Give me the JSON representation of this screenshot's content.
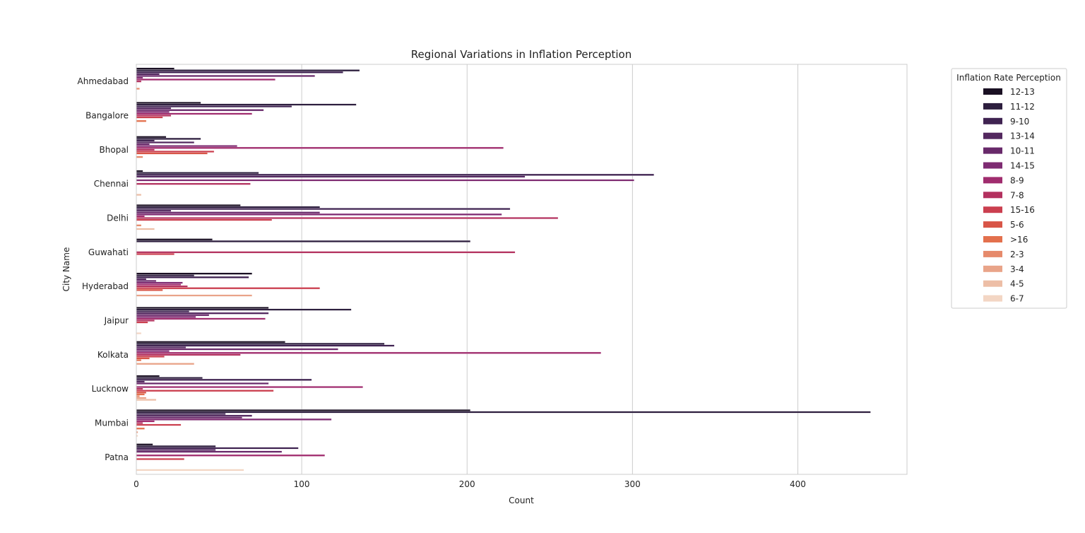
{
  "chart_data": {
    "type": "bar",
    "orientation": "horizontal",
    "title": "Regional Variations in Inflation Perception",
    "xlabel": "Count",
    "ylabel": "City Name",
    "xlim": [
      0,
      466
    ],
    "xticks": [
      0,
      100,
      200,
      300,
      400
    ],
    "grid": true,
    "legend": {
      "title": "Inflation Rate Perception",
      "placement": "outside-right-top"
    },
    "categories": [
      "Ahmedabad",
      "Bangalore",
      "Bhopal",
      "Chennai",
      "Delhi",
      "Guwahati",
      "Hyderabad",
      "Jaipur",
      "Kolkata",
      "Lucknow",
      "Mumbai",
      "Patna"
    ],
    "series": [
      {
        "name": "12-13",
        "color": "#1a1023",
        "values": [
          23,
          39,
          18,
          4,
          63,
          46,
          70,
          80,
          90,
          14,
          202,
          10
        ]
      },
      {
        "name": "11-12",
        "color": "#2d1e3e",
        "values": [
          135,
          133,
          39,
          74,
          111,
          202,
          35,
          130,
          150,
          40,
          444,
          48
        ]
      },
      {
        "name": "9-10",
        "color": "#3f2351",
        "values": [
          125,
          94,
          11,
          313,
          226,
          0,
          68,
          32,
          156,
          106,
          54,
          98
        ]
      },
      {
        "name": "13-14",
        "color": "#53285f",
        "values": [
          14,
          21,
          35,
          235,
          21,
          0,
          6,
          80,
          30,
          5,
          70,
          48
        ]
      },
      {
        "name": "10-11",
        "color": "#68296a",
        "values": [
          108,
          77,
          8,
          0,
          111,
          0,
          12,
          44,
          122,
          80,
          64,
          88
        ]
      },
      {
        "name": "14-15",
        "color": "#7e2b72",
        "values": [
          4,
          20,
          61,
          301,
          221,
          0,
          28,
          36,
          20,
          0,
          118,
          0
        ]
      },
      {
        "name": "8-9",
        "color": "#a02c6e",
        "values": [
          84,
          70,
          222,
          0,
          5,
          0,
          27,
          78,
          281,
          137,
          11,
          114
        ]
      },
      {
        "name": "7-8",
        "color": "#b3315f",
        "values": [
          3,
          21,
          11,
          69,
          255,
          229,
          31,
          11,
          63,
          4,
          4,
          0
        ]
      },
      {
        "name": "15-16",
        "color": "#cb3f4f",
        "values": [
          0,
          16,
          47,
          0,
          82,
          23,
          111,
          7,
          17,
          83,
          27,
          29
        ]
      },
      {
        "name": "5-6",
        "color": "#d85547",
        "values": [
          0,
          0,
          43,
          0,
          0,
          0,
          16,
          0,
          8,
          6,
          0,
          0
        ]
      },
      {
        "name": ">16",
        "color": "#e3704d",
        "values": [
          0,
          6,
          0,
          0,
          0,
          0,
          0,
          0,
          3,
          5,
          5,
          0
        ]
      },
      {
        "name": "2-3",
        "color": "#e68a6b",
        "values": [
          2,
          0,
          4,
          0,
          3,
          0,
          0,
          0,
          0,
          2,
          0,
          0
        ]
      },
      {
        "name": "3-4",
        "color": "#e9a489",
        "values": [
          0,
          0,
          0,
          0,
          0,
          0,
          70,
          0,
          35,
          6,
          1,
          0
        ]
      },
      {
        "name": "4-5",
        "color": "#edbea6",
        "values": [
          0,
          0,
          0,
          3,
          11,
          0,
          0,
          0,
          0,
          12,
          0,
          0
        ]
      },
      {
        "name": "6-7",
        "color": "#f3d6c4",
        "values": [
          0,
          0,
          0,
          0,
          0,
          0,
          0,
          3,
          0,
          0,
          1,
          65
        ]
      }
    ]
  }
}
